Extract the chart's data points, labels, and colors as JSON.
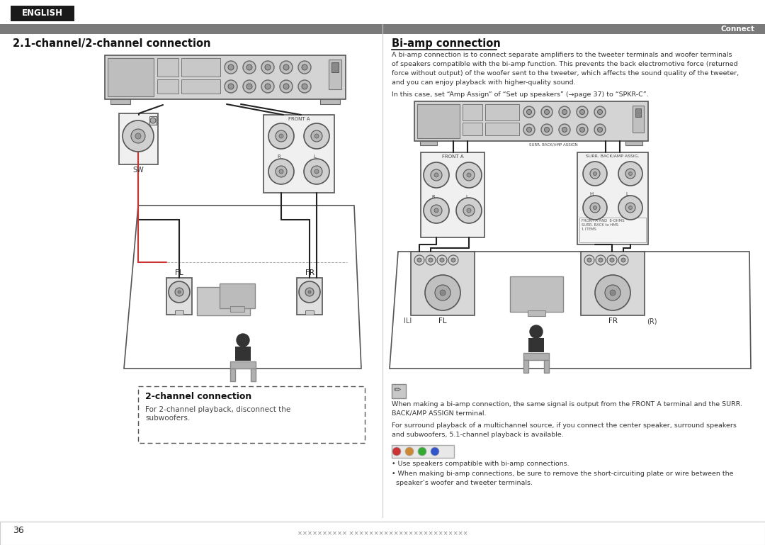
{
  "page_bg": "#ffffff",
  "english_text": "ENGLISH",
  "connect_text": "Connect",
  "left_title": "2.1-channel/2-channel connection",
  "right_title": "Bi-amp connection",
  "channel2_box_title": "2-channel connection",
  "channel2_box_text": "For 2-channel playback, disconnect the\nsubwoofers.",
  "bi_amp_para1": "A bi-amp connection is to connect separate amplifiers to the tweeter terminals and woofer terminals\nof speakers compatible with the bi-amp function. This prevents the back electromotive force (returned\nforce without output) of the woofer sent to the tweeter, which affects the sound quality of the tweeter,\nand you can enjoy playback with higher-quality sound.",
  "bi_amp_para2": "In this case, set “Amp Assign” of “Set up speakers” (→page 37) to “SPKR-C”.",
  "note_text1": "When making a bi-amp connection, the same signal is output from the FRONT A terminal and the SURR.\nBACK/AMP ASSIGN terminal.",
  "note_text2": "For surround playback of a multichannel source, if you connect the center speaker, surround speakers\nand subwoofers, 5.1-channel playback is available.",
  "caution_text1": "• Use speakers compatible with bi-amp connections.",
  "caution_text2": "• When making bi-amp connections, be sure to remove the short-circuiting plate or wire between the\n  speaker’s woofer and tweeter terminals.",
  "page_number": "36",
  "label_fl": "FL",
  "label_fr": "FR",
  "label_sw": "SW",
  "label_il": "ILI",
  "label_r": "(R)"
}
